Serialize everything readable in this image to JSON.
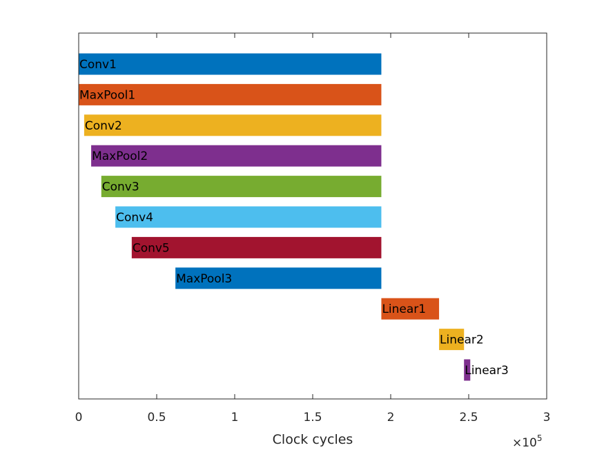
{
  "chart_data": {
    "type": "bar",
    "orientation": "horizontal-timeline",
    "title": "",
    "xlabel": "Clock cycles",
    "ylabel": "",
    "xlim": [
      0,
      300000
    ],
    "x_ticks": [
      0,
      50000,
      100000,
      150000,
      200000,
      250000,
      300000
    ],
    "x_tick_labels": [
      "0",
      "0.5",
      "1",
      "1.5",
      "2",
      "2.5",
      "3"
    ],
    "x_exponent_label": "×10",
    "x_exponent_power": "5",
    "grid": false,
    "bars": [
      {
        "label": "Conv1",
        "start": 0,
        "end": 194000,
        "color": "#0072BD"
      },
      {
        "label": "MaxPool1",
        "start": 0,
        "end": 194000,
        "color": "#D95319"
      },
      {
        "label": "Conv2",
        "start": 3500,
        "end": 194000,
        "color": "#EDB120"
      },
      {
        "label": "MaxPool2",
        "start": 8000,
        "end": 194000,
        "color": "#7E2F8E"
      },
      {
        "label": "Conv3",
        "start": 14500,
        "end": 194000,
        "color": "#77AC30"
      },
      {
        "label": "Conv4",
        "start": 23500,
        "end": 194000,
        "color": "#4DBEEE"
      },
      {
        "label": "Conv5",
        "start": 34000,
        "end": 194000,
        "color": "#A2142F"
      },
      {
        "label": "MaxPool3",
        "start": 62000,
        "end": 194000,
        "color": "#0072BD"
      },
      {
        "label": "Linear1",
        "start": 194000,
        "end": 231000,
        "color": "#D95319"
      },
      {
        "label": "Linear2",
        "start": 231000,
        "end": 247000,
        "color": "#EDB120"
      },
      {
        "label": "Linear3",
        "start": 247000,
        "end": 251000,
        "color": "#7E2F8E"
      }
    ]
  }
}
